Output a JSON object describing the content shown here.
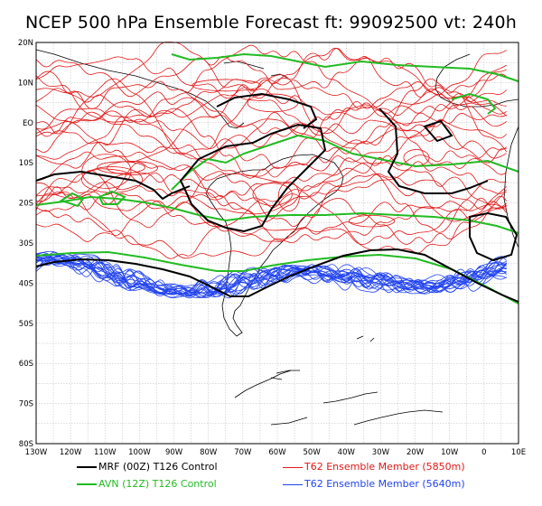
{
  "title": "NCEP 500 hPa Ensemble Forecast  ft: 99092500 vt: 240h",
  "map": {
    "lat_labels": [
      "20N",
      "10N",
      "EO",
      "10S",
      "20S",
      "30S",
      "40S",
      "50S",
      "60S",
      "70S",
      "80S"
    ],
    "lon_labels": [
      "130W",
      "120W",
      "110W",
      "100W",
      "90W",
      "80W",
      "70W",
      "60W",
      "50W",
      "40W",
      "30W",
      "20W",
      "10W",
      "0",
      "10E"
    ],
    "lat_values": [
      20,
      10,
      0,
      -10,
      -20,
      -30,
      -40,
      -50,
      -60,
      -70,
      -80
    ],
    "lon_values": [
      -130,
      -120,
      -110,
      -100,
      -90,
      -80,
      -70,
      -60,
      -50,
      -40,
      -30,
      -20,
      -10,
      0,
      10
    ],
    "grid": true
  },
  "legend": {
    "mrf": {
      "label": "MRF (00Z) T126 Control",
      "color": "#000000"
    },
    "avn": {
      "label": "AVN (12Z) T126 Control",
      "color": "#22bb22"
    },
    "t62_red": {
      "label": "T62 Ensemble Member (5850m)",
      "color": "#e01818"
    },
    "t62_blue": {
      "label": "T62 Ensemble Member (5640m)",
      "color": "#2244ee"
    }
  }
}
